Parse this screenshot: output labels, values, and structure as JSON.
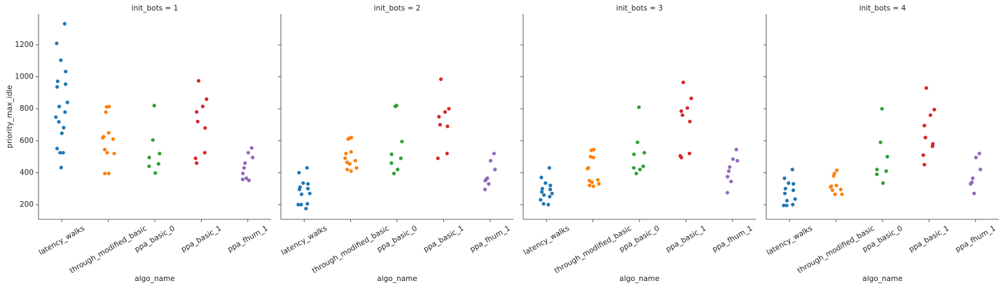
{
  "chart_data": [
    {
      "type": "strip",
      "title": "init_bots = 1",
      "x_label": "algo_name",
      "y_label": "priority_max_idle",
      "categories": [
        "latency_walks",
        "through_modified_basic",
        "ppa_basic_0",
        "ppa_basic_1",
        "ppa_fhum_1"
      ],
      "colors": [
        "#1f77b4",
        "#ff7f0e",
        "#2ca02c",
        "#d62728",
        "#9467bd"
      ],
      "ylim": [
        108,
        1393
      ],
      "yticks": [
        200,
        400,
        600,
        800,
        1000,
        1200
      ],
      "values": [
        [
          1332,
          1209,
          1104,
          1033,
          972,
          954,
          937,
          840,
          814,
          779,
          748,
          718,
          682,
          647,
          551,
          525,
          525,
          432
        ],
        [
          814,
          812,
          779,
          650,
          625,
          618,
          610,
          545,
          525,
          520,
          395,
          395
        ],
        [
          820,
          605,
          520,
          495,
          455,
          440,
          398
        ],
        [
          975,
          860,
          815,
          780,
          720,
          680,
          525,
          490,
          460
        ],
        [
          555,
          525,
          495,
          460,
          430,
          395,
          365,
          358,
          352
        ]
      ]
    },
    {
      "type": "strip",
      "title": "init_bots = 2",
      "x_label": "algo_name",
      "categories": [
        "latency_walks",
        "through_modified_basic",
        "ppa_basic_0",
        "ppa_basic_1",
        "ppa_fhum_1"
      ],
      "colors": [
        "#1f77b4",
        "#ff7f0e",
        "#2ca02c",
        "#d62728",
        "#9467bd"
      ],
      "values": [
        [
          430,
          400,
          335,
          330,
          310,
          300,
          295,
          270,
          265,
          205,
          200,
          200,
          175
        ],
        [
          620,
          615,
          610,
          530,
          520,
          490,
          475,
          465,
          455,
          430,
          420,
          410
        ],
        [
          820,
          815,
          595,
          515,
          490,
          460,
          420,
          395
        ],
        [
          985,
          800,
          780,
          750,
          700,
          690,
          520,
          490
        ],
        [
          520,
          475,
          420,
          365,
          360,
          350,
          330,
          295
        ]
      ]
    },
    {
      "type": "strip",
      "title": "init_bots = 3",
      "x_label": "algo_name",
      "categories": [
        "latency_walks",
        "through_modified_basic",
        "ppa_basic_0",
        "ppa_basic_1",
        "ppa_fhum_1"
      ],
      "colors": [
        "#1f77b4",
        "#ff7f0e",
        "#2ca02c",
        "#d62728",
        "#9467bd"
      ],
      "values": [
        [
          430,
          370,
          335,
          320,
          300,
          295,
          280,
          270,
          260,
          250,
          230,
          205,
          200
        ],
        [
          545,
          540,
          500,
          495,
          430,
          425,
          355,
          350,
          340,
          330,
          320,
          315
        ],
        [
          810,
          590,
          525,
          515,
          440,
          430,
          420,
          395
        ],
        [
          965,
          865,
          805,
          785,
          760,
          720,
          520,
          505,
          495
        ],
        [
          545,
          485,
          475,
          435,
          410,
          375,
          345,
          275
        ]
      ]
    },
    {
      "type": "strip",
      "title": "init_bots = 4",
      "x_label": "algo_name",
      "categories": [
        "latency_walks",
        "through_modified_basic",
        "ppa_basic_0",
        "ppa_basic_1",
        "ppa_fhum_1"
      ],
      "colors": [
        "#1f77b4",
        "#ff7f0e",
        "#2ca02c",
        "#d62728",
        "#9467bd"
      ],
      "values": [
        [
          420,
          365,
          335,
          330,
          300,
          290,
          270,
          235,
          225,
          200,
          195,
          195
        ],
        [
          415,
          395,
          380,
          320,
          315,
          310,
          295,
          290,
          265,
          265
        ],
        [
          800,
          590,
          500,
          420,
          410,
          390,
          335
        ],
        [
          930,
          795,
          760,
          695,
          620,
          580,
          565,
          510,
          450
        ],
        [
          520,
          495,
          420,
          365,
          340,
          330,
          270
        ]
      ]
    }
  ]
}
